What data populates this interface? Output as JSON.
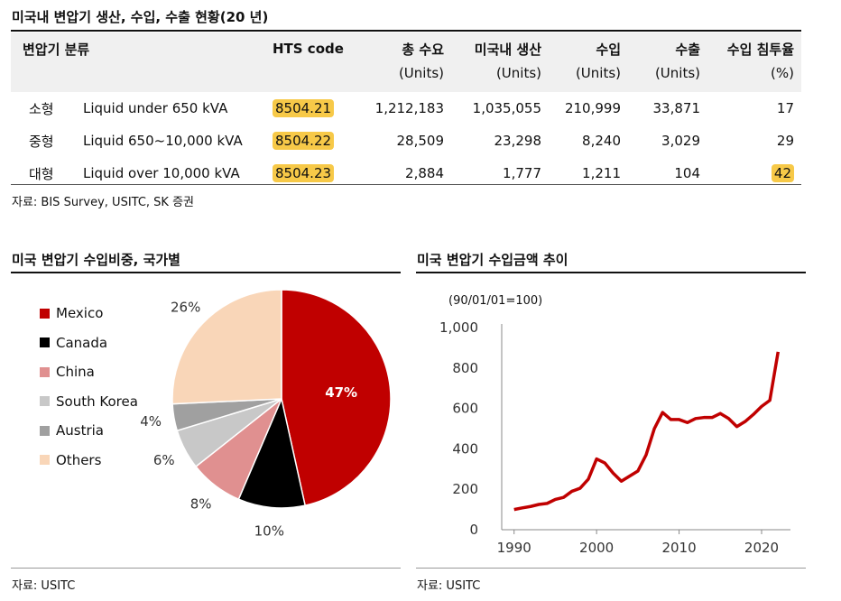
{
  "table": {
    "title": "미국내 변압기 생산, 수입, 수출 현황(20 년)",
    "headers": [
      "변압기 분류",
      "",
      "HTS code",
      "총 수요",
      "미국내 생산",
      "수입",
      "수출",
      "수입 침투율"
    ],
    "units": [
      "",
      "",
      "",
      "(Units)",
      "(Units)",
      "(Units)",
      "(Units)",
      "(%)"
    ],
    "rows": [
      {
        "size": "소형",
        "desc": "Liquid under 650 kVA",
        "hts": "8504.21",
        "demand": "1,212,183",
        "domestic": "1,035,055",
        "imports": "210,999",
        "exports": "33,871",
        "penetration": "17"
      },
      {
        "size": "중형",
        "desc": "Liquid 650~10,000 kVA",
        "hts": "8504.22",
        "demand": "28,509",
        "domestic": "23,298",
        "imports": "8,240",
        "exports": "3,029",
        "penetration": "29"
      },
      {
        "size": "대형",
        "desc": "Liquid over 10,000 kVA",
        "hts": "8504.23",
        "demand": "2,884",
        "domestic": "1,777",
        "imports": "1,211",
        "exports": "104",
        "penetration": "42"
      }
    ],
    "source": "자료: BIS Survey, USITC, SK 증권"
  },
  "pie": {
    "title": "미국 변압기 수입비중, 국가별",
    "source": "자료: USITC"
  },
  "line": {
    "title": "미국 변압기 수입금액 추이",
    "source": "자료: USITC",
    "unit_label": "(90/01/01=100)"
  },
  "chart_data": [
    {
      "type": "pie",
      "categories": [
        "Mexico",
        "Canada",
        "China",
        "South Korea",
        "Austria",
        "Others"
      ],
      "values": [
        47,
        10,
        8,
        6,
        4,
        26
      ],
      "labels": [
        "47%",
        "10%",
        "8%",
        "6%",
        "4%",
        "26%"
      ],
      "colors": [
        "#c00000",
        "#000000",
        "#e09090",
        "#c8c8c8",
        "#a0a0a0",
        "#f9d6b8"
      ],
      "legend_position": "left"
    },
    {
      "type": "line",
      "x": [
        1990,
        1991,
        1992,
        1993,
        1994,
        1995,
        1996,
        1997,
        1998,
        1999,
        2000,
        2001,
        2002,
        2003,
        2004,
        2005,
        2006,
        2007,
        2008,
        2009,
        2010,
        2011,
        2012,
        2013,
        2014,
        2015,
        2016,
        2017,
        2018,
        2019,
        2020,
        2021,
        2022
      ],
      "series": [
        {
          "values": [
            100,
            108,
            115,
            125,
            130,
            150,
            160,
            190,
            205,
            250,
            350,
            330,
            280,
            240,
            265,
            290,
            370,
            500,
            580,
            545,
            545,
            530,
            550,
            555,
            555,
            575,
            550,
            510,
            535,
            570,
            610,
            640,
            880
          ],
          "color": "#c00000"
        }
      ],
      "xticks": [
        1990,
        2000,
        2010,
        2020
      ],
      "xlim": [
        1990,
        2022
      ],
      "yticks": [
        "0",
        "200",
        "400",
        "600",
        "800",
        "1,000"
      ],
      "ylim": [
        0,
        1000
      ],
      "grid": false
    }
  ]
}
